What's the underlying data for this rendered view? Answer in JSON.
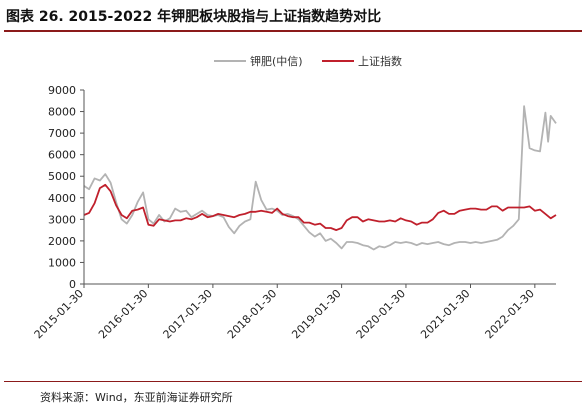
{
  "header": {
    "title": "图表 26. 2015-2022 年钾肥板块股指与上证指数趋势对比"
  },
  "footer": {
    "source": "资料来源：Wind，东亚前海证券研究所"
  },
  "colors": {
    "title_rule": "#8b1a1a",
    "axis": "#555555"
  },
  "chart_data": {
    "type": "line",
    "title": "",
    "xlabel": "",
    "ylabel": "",
    "ylim": [
      0,
      9000
    ],
    "ytick_labels": [
      "0",
      "1000",
      "2000",
      "3000",
      "4000",
      "5000",
      "6000",
      "7000",
      "8000",
      "9000"
    ],
    "xtick_labels": [
      "2015-01-30",
      "2016-01-30",
      "2017-01-30",
      "2018-01-30",
      "2019-01-30",
      "2020-01-30",
      "2021-01-30",
      "2022-01-30"
    ],
    "x_domain": [
      "2015-01-30",
      "2022-05-30"
    ],
    "grid": false,
    "legend_position": "top",
    "series": [
      {
        "name": "钾肥(中信)",
        "color": "#b3b3b3",
        "points": [
          [
            "2015-01-30",
            4550
          ],
          [
            "2015-02-28",
            4400
          ],
          [
            "2015-03-31",
            4900
          ],
          [
            "2015-04-30",
            4800
          ],
          [
            "2015-05-31",
            5100
          ],
          [
            "2015-06-30",
            4700
          ],
          [
            "2015-07-31",
            3800
          ],
          [
            "2015-08-31",
            3000
          ],
          [
            "2015-09-30",
            2800
          ],
          [
            "2015-10-31",
            3200
          ],
          [
            "2015-11-30",
            3800
          ],
          [
            "2015-12-31",
            4250
          ],
          [
            "2016-01-30",
            3000
          ],
          [
            "2016-02-29",
            2800
          ],
          [
            "2016-03-31",
            3200
          ],
          [
            "2016-04-30",
            2900
          ],
          [
            "2016-05-31",
            3050
          ],
          [
            "2016-06-30",
            3500
          ],
          [
            "2016-07-31",
            3350
          ],
          [
            "2016-08-31",
            3400
          ],
          [
            "2016-09-30",
            3100
          ],
          [
            "2016-10-31",
            3250
          ],
          [
            "2016-11-30",
            3400
          ],
          [
            "2016-12-31",
            3200
          ],
          [
            "2017-01-30",
            3150
          ],
          [
            "2017-02-28",
            3200
          ],
          [
            "2017-03-31",
            3100
          ],
          [
            "2017-04-30",
            2650
          ],
          [
            "2017-05-31",
            2350
          ],
          [
            "2017-06-30",
            2700
          ],
          [
            "2017-07-31",
            2900
          ],
          [
            "2017-08-31",
            3000
          ],
          [
            "2017-09-30",
            4750
          ],
          [
            "2017-10-31",
            3900
          ],
          [
            "2017-11-30",
            3450
          ],
          [
            "2017-12-31",
            3500
          ],
          [
            "2018-01-30",
            3400
          ],
          [
            "2018-02-28",
            3200
          ],
          [
            "2018-03-31",
            3250
          ],
          [
            "2018-04-30",
            3150
          ],
          [
            "2018-05-31",
            3000
          ],
          [
            "2018-06-30",
            2700
          ],
          [
            "2018-07-31",
            2400
          ],
          [
            "2018-08-31",
            2200
          ],
          [
            "2018-09-30",
            2350
          ],
          [
            "2018-10-31",
            2000
          ],
          [
            "2018-11-30",
            2100
          ],
          [
            "2018-12-31",
            1900
          ],
          [
            "2019-01-30",
            1650
          ],
          [
            "2019-02-28",
            1950
          ],
          [
            "2019-03-31",
            1950
          ],
          [
            "2019-04-30",
            1900
          ],
          [
            "2019-05-31",
            1800
          ],
          [
            "2019-06-30",
            1750
          ],
          [
            "2019-07-31",
            1600
          ],
          [
            "2019-08-31",
            1750
          ],
          [
            "2019-09-30",
            1700
          ],
          [
            "2019-10-31",
            1800
          ],
          [
            "2019-11-30",
            1950
          ],
          [
            "2019-12-31",
            1900
          ],
          [
            "2020-01-30",
            1950
          ],
          [
            "2020-02-29",
            1900
          ],
          [
            "2020-03-31",
            1800
          ],
          [
            "2020-04-30",
            1900
          ],
          [
            "2020-05-31",
            1850
          ],
          [
            "2020-06-30",
            1900
          ],
          [
            "2020-07-31",
            1950
          ],
          [
            "2020-08-31",
            1850
          ],
          [
            "2020-09-30",
            1800
          ],
          [
            "2020-10-31",
            1900
          ],
          [
            "2020-11-30",
            1950
          ],
          [
            "2020-12-31",
            1950
          ],
          [
            "2021-01-30",
            1900
          ],
          [
            "2021-02-28",
            1950
          ],
          [
            "2021-03-31",
            1900
          ],
          [
            "2021-04-30",
            1950
          ],
          [
            "2021-05-31",
            2000
          ],
          [
            "2021-06-30",
            2050
          ],
          [
            "2021-07-31",
            2200
          ],
          [
            "2021-08-31",
            2500
          ],
          [
            "2021-09-30",
            2700
          ],
          [
            "2021-10-31",
            3000
          ],
          [
            "2021-11-30",
            8250
          ],
          [
            "2021-12-31",
            6300
          ],
          [
            "2022-01-30",
            6200
          ],
          [
            "2022-02-28",
            6150
          ],
          [
            "2022-03-31",
            7950
          ],
          [
            "2022-04-15",
            6600
          ],
          [
            "2022-04-30",
            7800
          ],
          [
            "2022-05-30",
            7450
          ]
        ]
      },
      {
        "name": "上证指数",
        "color": "#c0202c",
        "points": [
          [
            "2015-01-30",
            3200
          ],
          [
            "2015-02-28",
            3300
          ],
          [
            "2015-03-31",
            3750
          ],
          [
            "2015-04-30",
            4450
          ],
          [
            "2015-05-31",
            4600
          ],
          [
            "2015-06-30",
            4300
          ],
          [
            "2015-07-31",
            3650
          ],
          [
            "2015-08-31",
            3200
          ],
          [
            "2015-09-30",
            3050
          ],
          [
            "2015-10-31",
            3400
          ],
          [
            "2015-11-30",
            3450
          ],
          [
            "2015-12-31",
            3550
          ],
          [
            "2016-01-30",
            2750
          ],
          [
            "2016-02-29",
            2700
          ],
          [
            "2016-03-31",
            3000
          ],
          [
            "2016-04-30",
            2950
          ],
          [
            "2016-05-31",
            2900
          ],
          [
            "2016-06-30",
            2950
          ],
          [
            "2016-07-31",
            2950
          ],
          [
            "2016-08-31",
            3050
          ],
          [
            "2016-09-30",
            3000
          ],
          [
            "2016-10-31",
            3100
          ],
          [
            "2016-11-30",
            3250
          ],
          [
            "2016-12-31",
            3100
          ],
          [
            "2017-01-30",
            3150
          ],
          [
            "2017-02-28",
            3250
          ],
          [
            "2017-03-31",
            3200
          ],
          [
            "2017-04-30",
            3150
          ],
          [
            "2017-05-31",
            3100
          ],
          [
            "2017-06-30",
            3200
          ],
          [
            "2017-07-31",
            3250
          ],
          [
            "2017-08-31",
            3350
          ],
          [
            "2017-09-30",
            3350
          ],
          [
            "2017-10-31",
            3400
          ],
          [
            "2017-11-30",
            3350
          ],
          [
            "2017-12-31",
            3300
          ],
          [
            "2018-01-30",
            3500
          ],
          [
            "2018-02-28",
            3250
          ],
          [
            "2018-03-31",
            3150
          ],
          [
            "2018-04-30",
            3100
          ],
          [
            "2018-05-31",
            3100
          ],
          [
            "2018-06-30",
            2850
          ],
          [
            "2018-07-31",
            2850
          ],
          [
            "2018-08-31",
            2750
          ],
          [
            "2018-09-30",
            2800
          ],
          [
            "2018-10-31",
            2600
          ],
          [
            "2018-11-30",
            2600
          ],
          [
            "2018-12-31",
            2500
          ],
          [
            "2019-01-30",
            2600
          ],
          [
            "2019-02-28",
            2950
          ],
          [
            "2019-03-31",
            3100
          ],
          [
            "2019-04-30",
            3100
          ],
          [
            "2019-05-31",
            2900
          ],
          [
            "2019-06-30",
            3000
          ],
          [
            "2019-07-31",
            2950
          ],
          [
            "2019-08-31",
            2900
          ],
          [
            "2019-09-30",
            2900
          ],
          [
            "2019-10-31",
            2950
          ],
          [
            "2019-11-30",
            2900
          ],
          [
            "2019-12-31",
            3050
          ],
          [
            "2020-01-30",
            2950
          ],
          [
            "2020-02-29",
            2900
          ],
          [
            "2020-03-31",
            2750
          ],
          [
            "2020-04-30",
            2850
          ],
          [
            "2020-05-31",
            2850
          ],
          [
            "2020-06-30",
            3000
          ],
          [
            "2020-07-31",
            3300
          ],
          [
            "2020-08-31",
            3400
          ],
          [
            "2020-09-30",
            3250
          ],
          [
            "2020-10-31",
            3250
          ],
          [
            "2020-11-30",
            3400
          ],
          [
            "2020-12-31",
            3450
          ],
          [
            "2021-01-30",
            3500
          ],
          [
            "2021-02-28",
            3500
          ],
          [
            "2021-03-31",
            3450
          ],
          [
            "2021-04-30",
            3450
          ],
          [
            "2021-05-31",
            3600
          ],
          [
            "2021-06-30",
            3600
          ],
          [
            "2021-07-31",
            3400
          ],
          [
            "2021-08-31",
            3550
          ],
          [
            "2021-09-30",
            3550
          ],
          [
            "2021-10-31",
            3550
          ],
          [
            "2021-11-30",
            3550
          ],
          [
            "2021-12-31",
            3600
          ],
          [
            "2022-01-30",
            3400
          ],
          [
            "2022-02-28",
            3450
          ],
          [
            "2022-03-31",
            3250
          ],
          [
            "2022-04-30",
            3050
          ],
          [
            "2022-05-30",
            3200
          ]
        ]
      }
    ]
  }
}
